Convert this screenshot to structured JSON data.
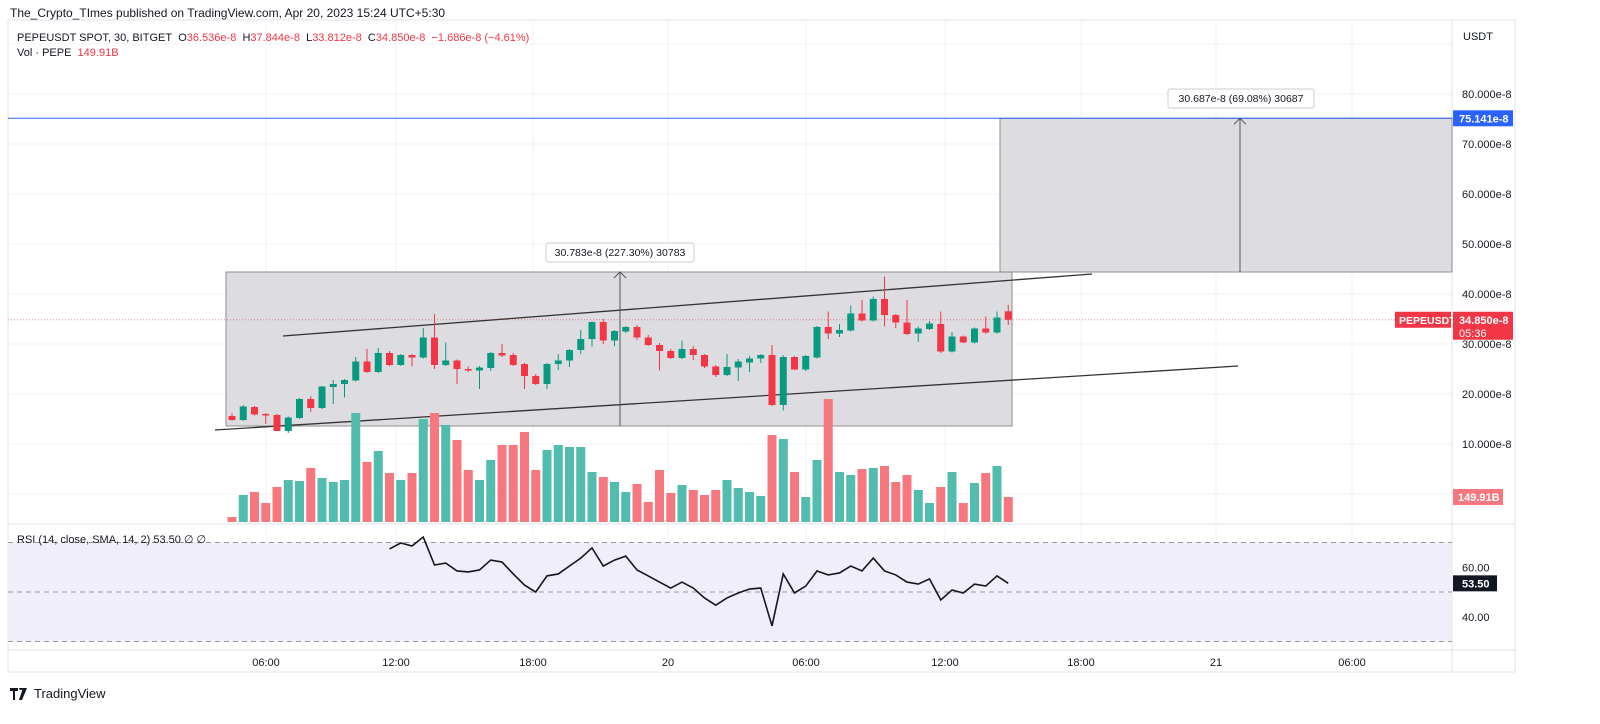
{
  "header": {
    "published": "The_Crypto_TImes published on TradingView.com, Apr 20, 2023 15:24 UTC+5:30"
  },
  "legend": {
    "symbol": "PEPEUSDT SPOT, 30, BITGET",
    "o_label": "O",
    "o": "36.536e-8",
    "h_label": "H",
    "h": "37.844e-8",
    "l_label": "L",
    "l": "33.812e-8",
    "c_label": "C",
    "c": "34.850e-8",
    "change": "−1.686e-8 (−4.61%)",
    "vol_label": "Vol · PEPE",
    "vol": "149.91B"
  },
  "rsi_legend": "RSI (14, close, SMA, 14, 2)  53.50  ∅  ∅",
  "footer": {
    "brand": "TradingView"
  },
  "colors": {
    "up": "#089981",
    "down": "#f23645",
    "vol_up": "#52bcaf",
    "vol_down": "#f7777f",
    "target_line": "#2962ff",
    "rsi_line": "#131722",
    "rsi_band": "#f0eef9"
  },
  "chart_data": [
    {
      "type": "candlestick",
      "ylabel": "USDT",
      "ylim": [
        0,
        90
      ],
      "y_ticks": [
        "80.000e-8",
        "70.000e-8",
        "60.000e-8",
        "50.000e-8",
        "40.000e-8",
        "30.000e-8",
        "20.000e-8",
        "10.000e-8"
      ],
      "y_tick_values": [
        80,
        70,
        60,
        50,
        40,
        30,
        20,
        10
      ],
      "x_ticks": [
        "06:00",
        "12:00",
        "18:00",
        "20",
        "06:00",
        "12:00",
        "18:00",
        "21",
        "06:00"
      ],
      "interval": "30m",
      "first_candle": "Apr 19 04:30",
      "ohlc_unit": "e-8 USDT",
      "ohlc": [
        [
          15.6,
          16.2,
          14.6,
          14.8
        ],
        [
          14.8,
          17.8,
          14.6,
          17.5
        ],
        [
          17.4,
          17.6,
          15.7,
          15.9
        ],
        [
          16.0,
          16.2,
          14.0,
          15.7
        ],
        [
          15.8,
          16.0,
          12.6,
          12.6
        ],
        [
          12.6,
          15.5,
          12.2,
          15.3
        ],
        [
          15.2,
          19.2,
          15.0,
          19.0
        ],
        [
          19.0,
          19.6,
          16.4,
          17.2
        ],
        [
          17.2,
          21.6,
          17.0,
          21.5
        ],
        [
          21.4,
          22.8,
          18.0,
          22.0
        ],
        [
          22.0,
          23.0,
          19.3,
          22.8
        ],
        [
          22.7,
          27.4,
          22.5,
          26.5
        ],
        [
          26.5,
          29.0,
          24.2,
          24.4
        ],
        [
          24.4,
          29.2,
          24.2,
          28.2
        ],
        [
          28.2,
          28.6,
          25.6,
          25.8
        ],
        [
          25.8,
          28.0,
          25.6,
          27.8
        ],
        [
          27.8,
          28.0,
          25.5,
          27.3
        ],
        [
          27.3,
          33.2,
          27.1,
          31.3
        ],
        [
          31.3,
          36.0,
          25.0,
          25.8
        ],
        [
          25.8,
          30.3,
          25.6,
          26.7
        ],
        [
          26.7,
          26.9,
          22.0,
          25.0
        ],
        [
          25.0,
          25.5,
          24.4,
          24.7
        ],
        [
          24.7,
          25.6,
          21.0,
          25.3
        ],
        [
          25.2,
          28.4,
          24.6,
          28.2
        ],
        [
          28.2,
          30.0,
          27.4,
          27.7
        ],
        [
          27.8,
          28.2,
          25.6,
          25.8
        ],
        [
          26.0,
          26.2,
          21.0,
          23.6
        ],
        [
          23.6,
          24.0,
          21.8,
          22.0
        ],
        [
          22.0,
          26.2,
          21.0,
          26.0
        ],
        [
          26.0,
          28.0,
          24.8,
          26.7
        ],
        [
          26.7,
          29.0,
          25.4,
          28.8
        ],
        [
          28.8,
          32.8,
          28.0,
          31.0
        ],
        [
          31.0,
          34.5,
          29.5,
          34.4
        ],
        [
          34.4,
          35.0,
          30.0,
          30.7
        ],
        [
          30.7,
          32.8,
          29.6,
          32.6
        ],
        [
          32.5,
          33.6,
          32.2,
          33.4
        ],
        [
          33.4,
          33.8,
          30.8,
          31.3
        ],
        [
          31.3,
          31.8,
          29.6,
          29.8
        ],
        [
          29.8,
          30.2,
          24.7,
          28.6
        ],
        [
          28.6,
          29.0,
          27.0,
          27.2
        ],
        [
          27.2,
          30.7,
          27.0,
          29.0
        ],
        [
          29.0,
          29.6,
          26.8,
          27.8
        ],
        [
          27.8,
          28.0,
          25.2,
          25.5
        ],
        [
          25.5,
          25.8,
          23.4,
          23.8
        ],
        [
          23.8,
          28.0,
          23.6,
          25.4
        ],
        [
          25.3,
          27.0,
          22.6,
          26.5
        ],
        [
          26.3,
          27.6,
          24.4,
          27.1
        ],
        [
          27.1,
          28.0,
          26.2,
          27.8
        ],
        [
          27.8,
          29.8,
          17.6,
          17.8
        ],
        [
          17.8,
          27.8,
          16.7,
          27.4
        ],
        [
          27.4,
          27.6,
          24.8,
          24.9
        ],
        [
          24.9,
          27.8,
          24.6,
          27.6
        ],
        [
          27.3,
          33.6,
          27.1,
          33.4
        ],
        [
          33.4,
          36.5,
          31.0,
          32.1
        ],
        [
          32.1,
          34.0,
          31.4,
          32.8
        ],
        [
          32.7,
          37.7,
          32.5,
          36.1
        ],
        [
          36.1,
          38.8,
          34.5,
          34.7
        ],
        [
          34.7,
          39.5,
          34.5,
          39.0
        ],
        [
          39.0,
          43.5,
          33.5,
          35.8
        ],
        [
          35.8,
          36.0,
          33.2,
          34.3
        ],
        [
          34.3,
          38.8,
          31.8,
          32.0
        ],
        [
          32.1,
          33.5,
          30.4,
          33.1
        ],
        [
          33.0,
          34.6,
          32.8,
          34.1
        ],
        [
          34.0,
          36.5,
          28.2,
          28.5
        ],
        [
          28.5,
          32.4,
          28.3,
          31.5
        ],
        [
          31.5,
          31.7,
          30.2,
          30.3
        ],
        [
          30.3,
          33.3,
          30.1,
          33.1
        ],
        [
          33.1,
          35.5,
          32.0,
          32.3
        ],
        [
          32.3,
          36.5,
          32.0,
          35.3
        ],
        [
          36.536,
          37.844,
          33.812,
          34.85
        ]
      ],
      "volume_unit": "B",
      "volume": [
        30,
        162,
        180,
        114,
        210,
        252,
        246,
        324,
        264,
        240,
        252,
        654,
        360,
        426,
        294,
        252,
        294,
        618,
        654,
        582,
        492,
        312,
        252,
        372,
        462,
        462,
        540,
        312,
        432,
        462,
        450,
        450,
        300,
        270,
        240,
        180,
        228,
        120,
        312,
        174,
        222,
        192,
        162,
        192,
        252,
        204,
        180,
        156,
        522,
        498,
        300,
        150,
        372,
        738,
        300,
        282,
        318,
        324,
        336,
        240,
        282,
        192,
        114,
        210,
        300,
        114,
        234,
        294,
        336,
        149.91
      ],
      "last_price": 34.85,
      "last_price_label": "34.850e-8",
      "countdown": "05:36",
      "symbol_tag": "PEPEUSDT",
      "volume_tag": "149.91B",
      "target_price": 75.141,
      "target_label": "75.141e-8",
      "range_box_1": {
        "top": 44.4,
        "bottom": 13.6,
        "label": "30.783e-8 (227.30%) 30783"
      },
      "range_box_2": {
        "top": 75.141,
        "bottom": 44.4,
        "label": "30.687e-8 (69.08%) 30687"
      }
    },
    {
      "type": "line",
      "title": "RSI (14, close, SMA, 14, 2)",
      "ylim": [
        25,
        75
      ],
      "bands": [
        70,
        50,
        30
      ],
      "y_ticks": [
        "60.00",
        "40.00"
      ],
      "y_tick_values": [
        60,
        40
      ],
      "current_label": "53.50",
      "start_candle_index": 14,
      "values": [
        67.4,
        69.8,
        68.6,
        72.2,
        60.9,
        61.7,
        58.5,
        58.1,
        58.9,
        62.9,
        62.1,
        57.3,
        52.8,
        50.0,
        56.5,
        57.3,
        60.5,
        63.7,
        67.8,
        60.5,
        62.9,
        64.5,
        58.9,
        56.5,
        54.0,
        51.6,
        54.0,
        51.6,
        47.6,
        44.7,
        47.6,
        49.6,
        51.2,
        51.6,
        36.3,
        57.3,
        49.6,
        52.4,
        58.5,
        56.9,
        57.7,
        60.5,
        58.5,
        63.7,
        58.5,
        56.9,
        54.0,
        53.2,
        55.3,
        46.8,
        50.8,
        49.6,
        53.2,
        52.4,
        56.5,
        53.5
      ]
    }
  ]
}
